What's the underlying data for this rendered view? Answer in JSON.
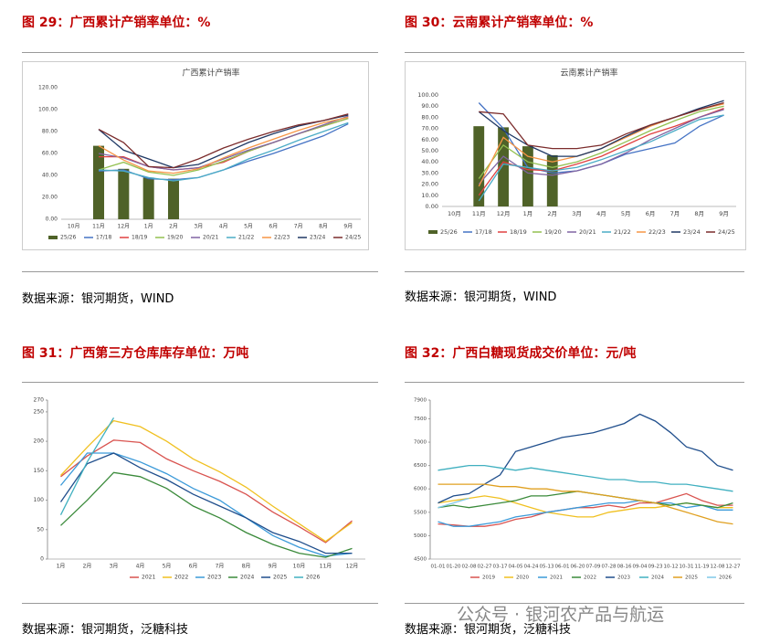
{
  "panels": [
    {
      "heading": "图 29：广西累计产销率单位：%",
      "source": "数据来源：银河期货，WIND"
    },
    {
      "heading": "图 30：云南累计产销率单位：%",
      "source": "数据来源：银河期货，WIND"
    },
    {
      "heading": "图 31：广西第三方仓库库存单位：万吨",
      "source": "数据来源：银河期货，泛糖科技"
    },
    {
      "heading": "图 32：广西白糖现货成交价单位：元/吨",
      "source": "数据来源：银河期货，泛糖科技"
    }
  ],
  "watermark": "公众号 · 银河农产品与航运",
  "chart_data": [
    {
      "type": "combo",
      "title": "广西累计产销率",
      "categories": [
        "10月",
        "11月",
        "12月",
        "1月",
        "2月",
        "3月",
        "4月",
        "5月",
        "6月",
        "7月",
        "8月",
        "9月"
      ],
      "ylim": [
        0,
        120
      ],
      "yticks": [
        {
          "value": 0,
          "label": "0.00"
        },
        {
          "value": 20,
          "label": "20.00"
        },
        {
          "value": 40,
          "label": "40.00"
        },
        {
          "value": 60,
          "label": "60.00"
        },
        {
          "value": 80,
          "label": "80.00"
        },
        {
          "value": 100,
          "label": "100.00"
        },
        {
          "value": 120,
          "label": "120.00"
        }
      ],
      "grid": false,
      "series": [
        {
          "name": "25/26",
          "type": "bar",
          "color": "#4f6228",
          "values": [
            null,
            67,
            46,
            38,
            37,
            null,
            null,
            null,
            null,
            null,
            null,
            null
          ]
        },
        {
          "name": "17/18",
          "type": "line",
          "color": "#4472c4",
          "values": [
            null,
            44,
            45,
            37,
            36,
            38,
            45,
            53,
            60,
            68,
            76,
            87
          ]
        },
        {
          "name": "18/19",
          "type": "line",
          "color": "#e04040",
          "values": [
            null,
            57,
            57,
            48,
            45,
            47,
            52,
            62,
            70,
            78,
            85,
            92
          ]
        },
        {
          "name": "19/20",
          "type": "line",
          "color": "#92c050",
          "values": [
            null,
            45,
            52,
            43,
            40,
            45,
            53,
            62,
            70,
            78,
            85,
            92
          ]
        },
        {
          "name": "20/21",
          "type": "line",
          "color": "#8064a2",
          "values": [
            null,
            60,
            56,
            48,
            45,
            47,
            55,
            63,
            70,
            78,
            86,
            94
          ]
        },
        {
          "name": "21/22",
          "type": "line",
          "color": "#4bacc6",
          "values": [
            null,
            45,
            44,
            38,
            35,
            38,
            45,
            55,
            63,
            72,
            80,
            88
          ]
        },
        {
          "name": "22/23",
          "type": "line",
          "color": "#f79646",
          "values": [
            null,
            67,
            54,
            44,
            42,
            46,
            56,
            65,
            73,
            81,
            88,
            93
          ]
        },
        {
          "name": "23/24",
          "type": "line",
          "color": "#1f3864",
          "values": [
            null,
            82,
            63,
            55,
            47,
            50,
            60,
            70,
            78,
            85,
            90,
            95
          ]
        },
        {
          "name": "24/25",
          "type": "line",
          "color": "#7b2c2c",
          "values": [
            null,
            82,
            70,
            48,
            47,
            55,
            65,
            73,
            80,
            86,
            90,
            96
          ]
        }
      ]
    },
    {
      "type": "combo",
      "title": "云南累计产销率",
      "categories": [
        "10月",
        "11月",
        "12月",
        "1月",
        "2月",
        "3月",
        "4月",
        "5月",
        "6月",
        "7月",
        "8月",
        "9月"
      ],
      "ylim": [
        0,
        100
      ],
      "yticks": [
        {
          "value": 0,
          "label": "0.00"
        },
        {
          "value": 10,
          "label": "10.00"
        },
        {
          "value": 20,
          "label": "20.00"
        },
        {
          "value": 30,
          "label": "30.00"
        },
        {
          "value": 40,
          "label": "40.00"
        },
        {
          "value": 50,
          "label": "50.00"
        },
        {
          "value": 60,
          "label": "60.00"
        },
        {
          "value": 70,
          "label": "70.00"
        },
        {
          "value": 80,
          "label": "80.00"
        },
        {
          "value": 90,
          "label": "90.00"
        },
        {
          "value": 100,
          "label": "100.00"
        }
      ],
      "grid": false,
      "series": [
        {
          "name": "25/26",
          "type": "bar",
          "color": "#4f6228",
          "values": [
            null,
            72,
            71,
            54,
            46,
            null,
            null,
            null,
            null,
            null,
            null,
            null
          ]
        },
        {
          "name": "17/18",
          "type": "line",
          "color": "#4472c4",
          "values": [
            null,
            93,
            70,
            35,
            30,
            32,
            38,
            47,
            52,
            57,
            72,
            82
          ]
        },
        {
          "name": "18/19",
          "type": "line",
          "color": "#e04040",
          "values": [
            null,
            10,
            40,
            33,
            32,
            38,
            45,
            55,
            65,
            72,
            80,
            88
          ]
        },
        {
          "name": "19/20",
          "type": "line",
          "color": "#92c050",
          "values": [
            null,
            25,
            55,
            40,
            35,
            40,
            48,
            58,
            68,
            77,
            85,
            90
          ]
        },
        {
          "name": "20/21",
          "type": "line",
          "color": "#8064a2",
          "values": [
            null,
            20,
            45,
            30,
            28,
            32,
            38,
            48,
            60,
            70,
            80,
            87
          ]
        },
        {
          "name": "21/22",
          "type": "line",
          "color": "#4bacc6",
          "values": [
            null,
            5,
            38,
            35,
            32,
            35,
            42,
            50,
            58,
            68,
            78,
            82
          ]
        },
        {
          "name": "22/23",
          "type": "line",
          "color": "#f79646",
          "values": [
            null,
            18,
            62,
            45,
            40,
            45,
            52,
            62,
            72,
            80,
            87,
            92
          ]
        },
        {
          "name": "23/24",
          "type": "line",
          "color": "#1f3864",
          "values": [
            null,
            85,
            68,
            55,
            45,
            45,
            52,
            63,
            73,
            80,
            88,
            95
          ]
        },
        {
          "name": "24/25",
          "type": "line",
          "color": "#7b2c2c",
          "values": [
            null,
            85,
            83,
            55,
            52,
            52,
            55,
            65,
            73,
            80,
            87,
            93
          ]
        }
      ]
    },
    {
      "type": "line",
      "categories": [
        "1月",
        "2月",
        "3月",
        "4月",
        "5月",
        "6月",
        "7月",
        "8月",
        "9月",
        "10月",
        "11月",
        "12月"
      ],
      "ylim": [
        0,
        270
      ],
      "yticks": [
        0,
        50,
        100,
        150,
        200,
        250,
        270
      ],
      "grid": false,
      "series": [
        {
          "name": "2021",
          "color": "#d9534f",
          "values": [
            140,
            175,
            202,
            198,
            170,
            150,
            132,
            110,
            80,
            55,
            28,
            65
          ]
        },
        {
          "name": "2022",
          "color": "#f0c020",
          "values": [
            142,
            190,
            235,
            225,
            200,
            170,
            148,
            122,
            90,
            60,
            30,
            62
          ]
        },
        {
          "name": "2023",
          "color": "#3b9ad9",
          "values": [
            125,
            180,
            180,
            165,
            145,
            120,
            100,
            70,
            40,
            20,
            5,
            10
          ]
        },
        {
          "name": "2024",
          "color": "#3a8a3a",
          "values": [
            57,
            100,
            147,
            140,
            120,
            90,
            70,
            45,
            25,
            10,
            3,
            18
          ]
        },
        {
          "name": "2025",
          "color": "#1f4e8c",
          "values": [
            97,
            162,
            180,
            155,
            135,
            110,
            90,
            70,
            45,
            30,
            10,
            10
          ]
        },
        {
          "name": "2026",
          "color": "#40b0c0",
          "values": [
            75,
            165,
            240,
            null,
            null,
            null,
            null,
            null,
            null,
            null,
            null,
            null
          ]
        }
      ]
    },
    {
      "type": "line",
      "categories": [
        "01-01",
        "01-20",
        "02-08",
        "02-27",
        "03-17",
        "04-05",
        "04-24",
        "05-13",
        "06-01",
        "06-20",
        "07-09",
        "07-28",
        "08-16",
        "09-04",
        "09-23",
        "10-12",
        "10-31",
        "11-19",
        "12-08",
        "12-27"
      ],
      "ylim": [
        4500,
        7900
      ],
      "yticks": [
        4500,
        5000,
        5500,
        6000,
        6500,
        7000,
        7500,
        7900
      ],
      "grid": false,
      "series": [
        {
          "name": "2019",
          "color": "#d9534f",
          "values": [
            5250,
            5230,
            5200,
            5200,
            5250,
            5350,
            5400,
            5500,
            5550,
            5600,
            5600,
            5650,
            5600,
            5700,
            5700,
            5800,
            5900,
            5750,
            5650,
            5650
          ]
        },
        {
          "name": "2020",
          "color": "#f0c020",
          "values": [
            5700,
            5750,
            5800,
            5850,
            5800,
            5700,
            5600,
            5500,
            5450,
            5400,
            5400,
            5500,
            5550,
            5600,
            5600,
            5650,
            5700,
            5650,
            5600,
            5600
          ]
        },
        {
          "name": "2021",
          "color": "#3b9ad9",
          "values": [
            5300,
            5200,
            5200,
            5250,
            5300,
            5400,
            5450,
            5500,
            5550,
            5600,
            5650,
            5700,
            5700,
            5750,
            5700,
            5700,
            5600,
            5650,
            5550,
            5550
          ]
        },
        {
          "name": "2022",
          "color": "#3a8a3a",
          "values": [
            5600,
            5650,
            5600,
            5650,
            5700,
            5750,
            5850,
            5850,
            5900,
            5950,
            5900,
            5850,
            5800,
            5750,
            5700,
            5650,
            5700,
            5650,
            5600,
            5700
          ]
        },
        {
          "name": "2023",
          "color": "#1f4e8c",
          "values": [
            5700,
            5850,
            5900,
            6100,
            6300,
            6800,
            6900,
            7000,
            7100,
            7150,
            7200,
            7300,
            7400,
            7600,
            7450,
            7200,
            6900,
            6800,
            6500,
            6400
          ]
        },
        {
          "name": "2024",
          "color": "#40b0c0",
          "values": [
            6400,
            6450,
            6500,
            6500,
            6450,
            6400,
            6450,
            6400,
            6350,
            6300,
            6250,
            6200,
            6200,
            6150,
            6150,
            6100,
            6100,
            6050,
            6000,
            5950
          ]
        },
        {
          "name": "2025",
          "color": "#e0a020",
          "values": [
            6100,
            6100,
            6100,
            6100,
            6050,
            6050,
            6000,
            6000,
            5950,
            5950,
            5900,
            5850,
            5800,
            5750,
            5700,
            5600,
            5500,
            5400,
            5300,
            5250
          ]
        },
        {
          "name": "2026",
          "color": "#7fc8e8",
          "values": [
            5600,
            5700,
            5800,
            null,
            null,
            null,
            null,
            null,
            null,
            null,
            null,
            null,
            null,
            null,
            null,
            null,
            null,
            null,
            null,
            null
          ]
        }
      ]
    }
  ]
}
